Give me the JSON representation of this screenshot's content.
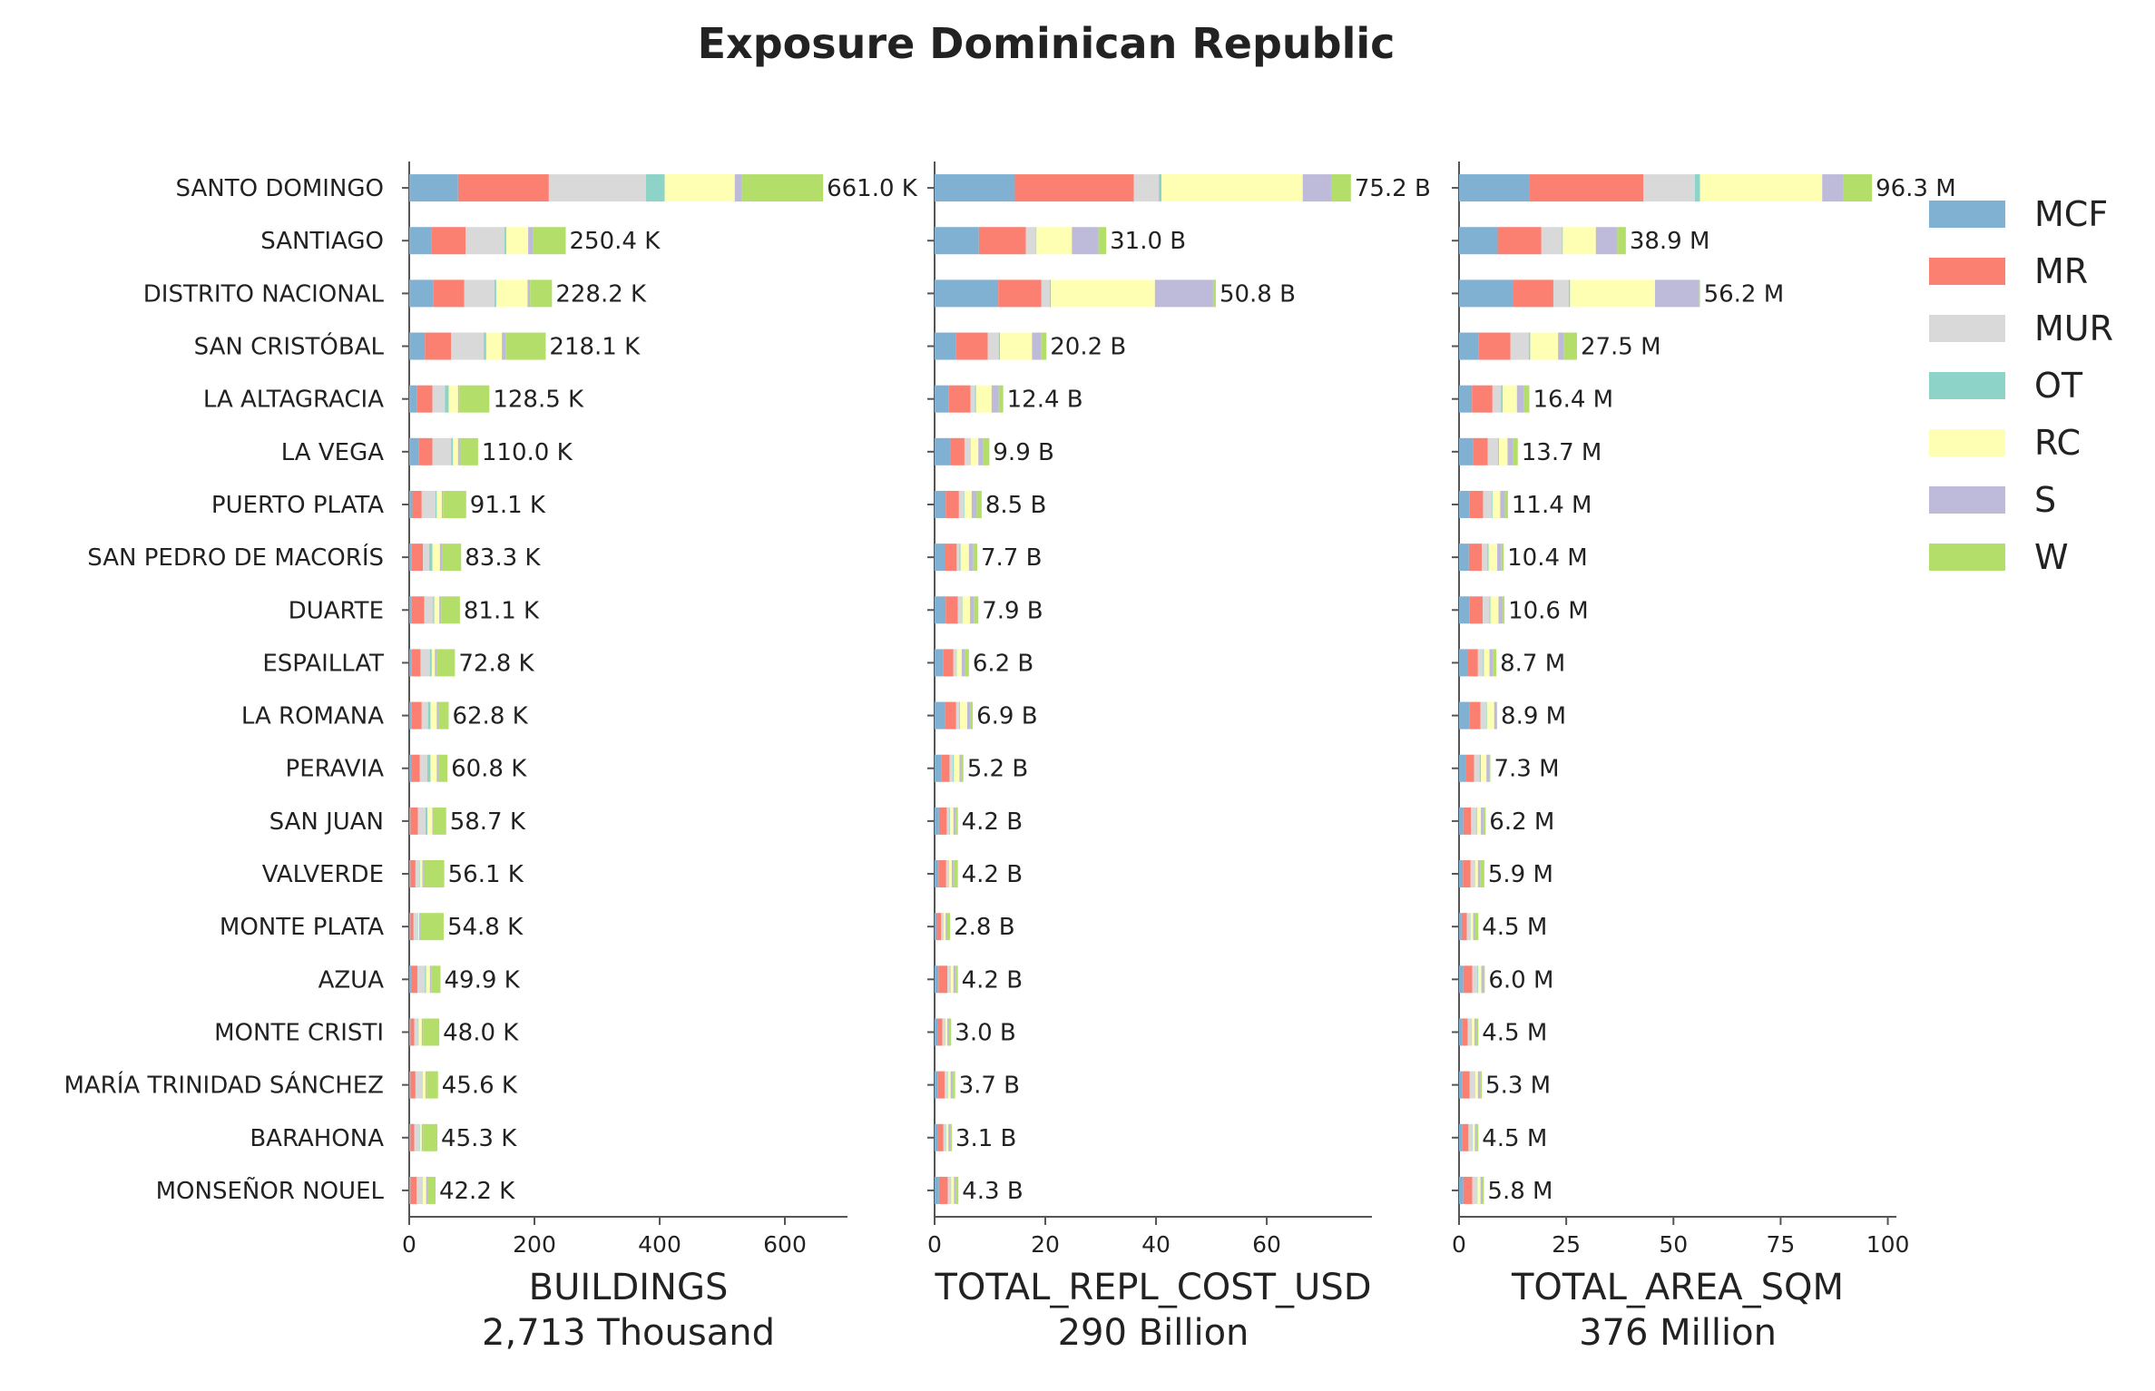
{
  "chart_data": {
    "type": "bar",
    "orientation": "horizontal",
    "stacked": true,
    "title": "Exposure Dominican Republic",
    "legend_position": "top-right",
    "grid": false,
    "categories": [
      "SANTO DOMINGO",
      "SANTIAGO",
      "DISTRITO NACIONAL",
      "SAN CRISTÓBAL",
      "LA ALTAGRACIA",
      "LA VEGA",
      "PUERTO PLATA",
      "SAN PEDRO DE MACORÍS",
      "DUARTE",
      "ESPAILLAT",
      "LA ROMANA",
      "PERAVIA",
      "SAN JUAN",
      "VALVERDE",
      "MONTE PLATA",
      "AZUA",
      "MONTE CRISTI",
      "MARÍA TRINIDAD SÁNCHEZ",
      "BARAHONA",
      "MONSEÑOR NOUEL"
    ],
    "legend": [
      {
        "name": "MCF",
        "color": "#80b1d3"
      },
      {
        "name": "MR",
        "color": "#fb8072"
      },
      {
        "name": "MUR",
        "color": "#d9d9d9"
      },
      {
        "name": "OT",
        "color": "#8dd3c7"
      },
      {
        "name": "RC",
        "color": "#ffffb3"
      },
      {
        "name": "S",
        "color": "#bebada"
      },
      {
        "name": "W",
        "color": "#b3de69"
      }
    ],
    "panels": [
      {
        "xlabel": "BUILDINGS",
        "total_label": "2,713 Thousand",
        "xlim": [
          0,
          700
        ],
        "xticks": [
          0,
          200,
          400,
          600
        ],
        "totals_text": [
          "661.0 K",
          "250.4 K",
          "228.2 K",
          "218.1 K",
          "128.5 K",
          "110.0 K",
          "91.1 K",
          "83.3 K",
          "81.1 K",
          "72.8 K",
          "62.8 K",
          "60.8 K",
          "58.7 K",
          "56.1 K",
          "54.8 K",
          "49.9 K",
          "48.0 K",
          "45.6 K",
          "45.3 K",
          "42.2 K"
        ],
        "series": [
          {
            "name": "MCF",
            "values": [
              78,
              35,
              38,
              25,
              12,
              15,
              5,
              4,
              4,
              4,
              4,
              3,
              2,
              2,
              2,
              3,
              2,
              2,
              2,
              2
            ]
          },
          {
            "name": "MR",
            "values": [
              145,
              55,
              50,
              42,
              25,
              22,
              15,
              18,
              20,
              14,
              16,
              14,
              12,
              8,
              5,
              10,
              6,
              8,
              6,
              10
            ]
          },
          {
            "name": "MUR",
            "values": [
              155,
              62,
              48,
              52,
              20,
              30,
              22,
              10,
              14,
              15,
              10,
              12,
              12,
              6,
              6,
              12,
              6,
              10,
              8,
              8
            ]
          },
          {
            "name": "OT",
            "values": [
              30,
              3,
              3,
              4,
              6,
              3,
              2,
              5,
              2,
              3,
              4,
              5,
              3,
              1,
              1,
              2,
              1,
              1,
              1,
              1
            ]
          },
          {
            "name": "RC",
            "values": [
              112,
              35,
              50,
              25,
              15,
              8,
              8,
              12,
              8,
              5,
              10,
              10,
              8,
              4,
              2,
              6,
              5,
              5,
              3,
              6
            ]
          },
          {
            "name": "S",
            "values": [
              11,
              8,
              4,
              6,
              2,
              3,
              2,
              4,
              3,
              3,
              3,
              3,
              2,
              2,
              2,
              2,
              2,
              2,
              2,
              2
            ]
          },
          {
            "name": "W",
            "values": [
              130,
              52,
              35,
              64,
              48,
              29,
              37,
              30,
              30,
              29,
              16,
              14,
              20,
              33,
              37,
              15,
              26,
              18,
              23,
              13
            ]
          }
        ]
      },
      {
        "xlabel": "TOTAL_REPL_COST_USD",
        "total_label": "290 Billion",
        "xlim": [
          0,
          79
        ],
        "xticks": [
          0,
          20,
          40,
          60
        ],
        "totals_text": [
          "75.2 B",
          "31.0 B",
          "50.8 B",
          "20.2 B",
          "12.4 B",
          "9.9 B",
          "8.5 B",
          "7.7 B",
          "7.9 B",
          "6.2 B",
          "6.9 B",
          "5.2 B",
          "4.2 B",
          "4.2 B",
          "2.8 B",
          "4.2 B",
          "3.0 B",
          "3.7 B",
          "3.1 B",
          "4.3 B"
        ],
        "series": [
          {
            "name": "MCF",
            "values": [
              14.5,
              8.0,
              11.5,
              3.8,
              2.5,
              2.8,
              2.0,
              1.8,
              2.0,
              1.6,
              1.9,
              1.2,
              0.8,
              0.7,
              0.4,
              0.7,
              0.5,
              0.6,
              0.5,
              0.8
            ]
          },
          {
            "name": "MR",
            "values": [
              21.5,
              8.5,
              7.8,
              5.8,
              4.0,
              2.6,
              2.4,
              2.2,
              2.2,
              1.8,
              2.0,
              1.5,
              1.4,
              1.4,
              0.8,
              1.6,
              0.9,
              1.2,
              1.1,
              1.6
            ]
          },
          {
            "name": "MUR",
            "values": [
              4.5,
              1.8,
              1.5,
              2.0,
              0.8,
              1.0,
              0.9,
              0.5,
              0.7,
              0.5,
              0.6,
              0.6,
              0.5,
              0.4,
              0.3,
              0.5,
              0.4,
              0.5,
              0.4,
              0.5
            ]
          },
          {
            "name": "OT",
            "values": [
              0.5,
              0.1,
              0.2,
              0.2,
              0.2,
              0.1,
              0.1,
              0.2,
              0.1,
              0.1,
              0.1,
              0.2,
              0.1,
              0.1,
              0.1,
              0.1,
              0.1,
              0.1,
              0.1,
              0.1
            ]
          },
          {
            "name": "RC",
            "values": [
              25.5,
              6.4,
              18.8,
              5.8,
              2.8,
              1.4,
              1.3,
              1.5,
              1.4,
              0.9,
              1.3,
              1.0,
              0.6,
              0.5,
              0.4,
              0.5,
              0.4,
              0.5,
              0.4,
              0.5
            ]
          },
          {
            "name": "S",
            "values": [
              5.2,
              4.8,
              10.5,
              1.6,
              1.3,
              0.9,
              0.9,
              0.8,
              0.7,
              0.6,
              0.6,
              0.4,
              0.4,
              0.4,
              0.3,
              0.4,
              0.3,
              0.4,
              0.3,
              0.4
            ]
          },
          {
            "name": "W",
            "values": [
              3.5,
              1.4,
              0.5,
              1.0,
              0.8,
              1.1,
              0.9,
              0.7,
              0.8,
              0.7,
              0.4,
              0.3,
              0.4,
              0.7,
              0.5,
              0.4,
              0.4,
              0.4,
              0.3,
              0.4
            ]
          }
        ]
      },
      {
        "xlabel": "TOTAL_AREA_SQM",
        "total_label": "376 Million",
        "xlim": [
          0,
          102
        ],
        "xticks": [
          0,
          25,
          50,
          75,
          100
        ],
        "totals_text": [
          "96.3 M",
          "38.9 M",
          "56.2 M",
          "27.5 M",
          "16.4 M",
          "13.7 M",
          "11.4 M",
          "10.4 M",
          "10.6 M",
          "8.7 M",
          "8.9 M",
          "7.3 M",
          "6.2 M",
          "5.9 M",
          "4.5 M",
          "6.0 M",
          "4.5 M",
          "5.3 M",
          "4.5 M",
          "5.8 M"
        ],
        "series": [
          {
            "name": "MCF",
            "values": [
              16.5,
              9.0,
              12.5,
              4.5,
              3.0,
              3.3,
              2.5,
              2.3,
              2.5,
              2.0,
              2.4,
              1.5,
              1.0,
              0.9,
              0.6,
              1.0,
              0.7,
              0.8,
              0.7,
              1.0
            ]
          },
          {
            "name": "MR",
            "values": [
              26.5,
              10.2,
              9.5,
              7.5,
              4.8,
              3.4,
              3.1,
              3.0,
              3.0,
              2.4,
              2.6,
              2.0,
              1.8,
              1.8,
              1.2,
              2.1,
              1.3,
              1.7,
              1.5,
              2.1
            ]
          },
          {
            "name": "MUR",
            "values": [
              12.0,
              4.8,
              3.6,
              4.3,
              2.0,
              2.4,
              2.0,
              1.3,
              1.6,
              1.2,
              1.3,
              1.3,
              1.2,
              0.9,
              0.8,
              1.2,
              0.9,
              1.1,
              0.9,
              1.1
            ]
          },
          {
            "name": "OT",
            "values": [
              1.2,
              0.2,
              0.3,
              0.3,
              0.4,
              0.2,
              0.2,
              0.3,
              0.2,
              0.2,
              0.2,
              0.3,
              0.2,
              0.1,
              0.1,
              0.2,
              0.1,
              0.1,
              0.1,
              0.1
            ]
          },
          {
            "name": "RC",
            "values": [
              28.5,
              7.7,
              19.8,
              6.5,
              3.3,
              2.0,
              1.8,
              2.0,
              1.9,
              1.3,
              1.7,
              1.3,
              0.9,
              0.7,
              0.6,
              0.7,
              0.6,
              0.7,
              0.5,
              0.7
            ]
          },
          {
            "name": "S",
            "values": [
              5.0,
              5.0,
              10.3,
              1.3,
              1.6,
              1.2,
              1.1,
              1.0,
              1.0,
              0.8,
              0.5,
              0.6,
              0.6,
              0.6,
              0.5,
              0.5,
              0.4,
              0.5,
              0.4,
              0.5
            ]
          },
          {
            "name": "W",
            "values": [
              6.6,
              2.0,
              0.2,
              3.1,
              1.3,
              1.2,
              0.7,
              0.5,
              0.4,
              0.8,
              0.2,
              0.3,
              0.5,
              0.9,
              0.7,
              0.3,
              0.5,
              0.4,
              0.4,
              0.3
            ]
          }
        ]
      }
    ]
  }
}
